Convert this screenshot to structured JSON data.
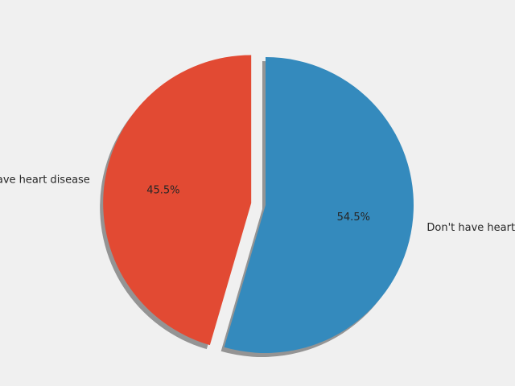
{
  "chart_data": {
    "type": "pie",
    "title": "",
    "slices": [
      {
        "label": "Have heart disease",
        "value": 45.5,
        "pct_label": "45.5%",
        "color": "#E24A33",
        "explode": true
      },
      {
        "label": "Don't have heart disease",
        "value": 54.5,
        "pct_label": "54.5%",
        "color": "#348ABD",
        "explode": false
      }
    ],
    "start_angle_deg": 90,
    "counterclockwise": true,
    "shadow": true,
    "background_color": "#F0F0F0"
  }
}
